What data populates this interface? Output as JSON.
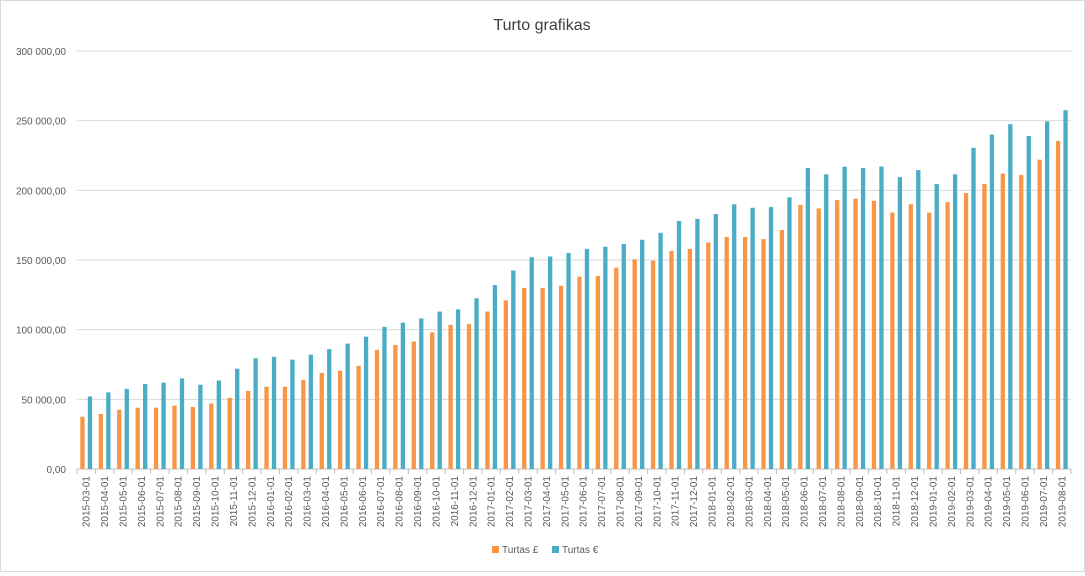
{
  "chart_data": {
    "type": "bar",
    "title": "Turto grafikas",
    "xlabel": "",
    "ylabel": "",
    "ylim": [
      0,
      300000
    ],
    "yticks": [
      0,
      50000,
      100000,
      150000,
      200000,
      250000,
      300000
    ],
    "ytick_labels": [
      "0,00",
      "50 000,00",
      "100 000,00",
      "150 000,00",
      "200 000,00",
      "250 000,00",
      "300 000,00"
    ],
    "grid": true,
    "legend_position": "bottom",
    "categories": [
      "2015-03-01",
      "2015-04-01",
      "2015-05-01",
      "2015-06-01",
      "2015-07-01",
      "2015-08-01",
      "2015-09-01",
      "2015-10-01",
      "2015-11-01",
      "2015-12-01",
      "2016-01-01",
      "2016-02-01",
      "2016-03-01",
      "2016-04-01",
      "2016-05-01",
      "2016-06-01",
      "2016-07-01",
      "2016-08-01",
      "2016-09-01",
      "2016-10-01",
      "2016-11-01",
      "2016-12-01",
      "2017-01-01",
      "2017-02-01",
      "2017-03-01",
      "2017-04-01",
      "2017-05-01",
      "2017-06-01",
      "2017-07-01",
      "2017-08-01",
      "2017-09-01",
      "2017-10-01",
      "2017-11-01",
      "2017-12-01",
      "2018-01-01",
      "2018-02-01",
      "2018-03-01",
      "2018-04-01",
      "2018-05-01",
      "2018-06-01",
      "2018-07-01",
      "2018-08-01",
      "2018-09-01",
      "2018-10-01",
      "2018-11-01",
      "2018-12-01",
      "2019-01-01",
      "2019-02-01",
      "2019-03-01",
      "2019-04-01",
      "2019-05-01",
      "2019-06-01",
      "2019-07-01",
      "2019-08-01"
    ],
    "series": [
      {
        "name": "Turtas £",
        "color": "#F79646",
        "values": [
          37500,
          39500,
          42500,
          44000,
          44000,
          45500,
          44500,
          47000,
          51000,
          56000,
          59000,
          59000,
          64000,
          69000,
          70500,
          74000,
          85500,
          89000,
          91500,
          98000,
          103500,
          104000,
          113000,
          121000,
          130000,
          130000,
          131500,
          138000,
          138500,
          144500,
          150500,
          149500,
          156500,
          158000,
          162500,
          166500,
          166500,
          165000,
          171500,
          189500,
          187000,
          193000,
          194000,
          192500,
          184000,
          190000,
          184000,
          191500,
          198000,
          204500,
          212000,
          211000,
          222000,
          235500
        ]
      },
      {
        "name": "Turtas €",
        "color": "#4BACC6",
        "values": [
          52000,
          55000,
          57500,
          61000,
          62000,
          65000,
          60500,
          63500,
          72000,
          79500,
          80500,
          78500,
          82000,
          86000,
          90000,
          95000,
          102000,
          105000,
          108000,
          113000,
          114500,
          122500,
          132000,
          142500,
          152000,
          152500,
          155000,
          158000,
          159500,
          161500,
          164500,
          169500,
          178000,
          179500,
          183000,
          190000,
          187500,
          188000,
          195000,
          216000,
          211500,
          217000,
          216000,
          217000,
          209500,
          214500,
          204500,
          211500,
          230500,
          240000,
          247500,
          239000,
          249500,
          257500
        ]
      }
    ]
  }
}
